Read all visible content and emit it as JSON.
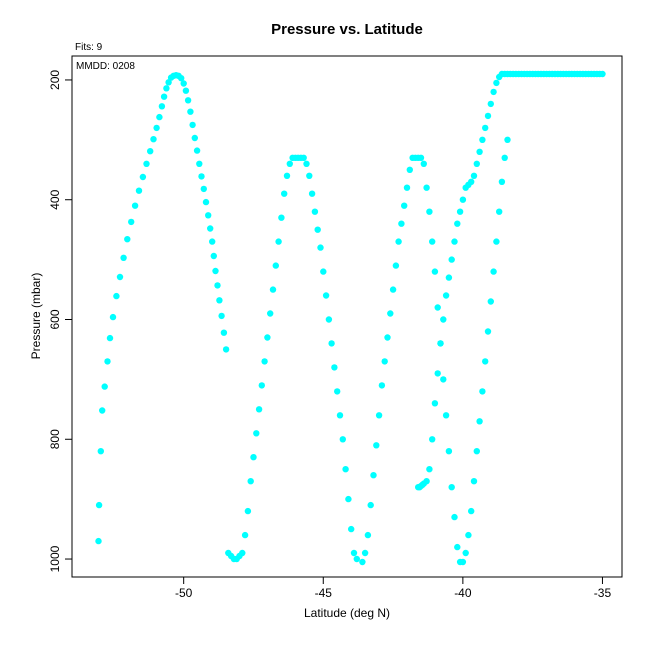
{
  "chart_data": {
    "type": "scatter",
    "title": "Pressure vs. Latitude",
    "xlabel": "Latitude (deg N)",
    "ylabel": "Pressure (mbar)",
    "xlim": [
      -54,
      -34.3
    ],
    "ylim": [
      1030,
      160
    ],
    "y_reversed": true,
    "xticks": [
      -50,
      -45,
      -40,
      -35
    ],
    "yticks": [
      200,
      400,
      600,
      800,
      1000
    ],
    "annotations": [
      "Fits: 9",
      "MMDD: 0208"
    ],
    "grid": false,
    "marker_color": "#00ffff",
    "series": [
      {
        "x": [
          -53.05,
          -53.03,
          -52.97,
          -52.92,
          -52.83,
          -52.73,
          -52.64,
          -52.53,
          -52.41,
          -52.28,
          -52.15,
          -52.02,
          -51.88,
          -51.74,
          -51.6,
          -51.46,
          -51.33,
          -51.2,
          -51.08,
          -50.97,
          -50.87,
          -50.78,
          -50.7,
          -50.62,
          -50.54,
          -50.45,
          -50.36,
          -50.27,
          -50.18,
          -50.09,
          -50.0,
          -49.92,
          -49.84,
          -49.76,
          -49.68,
          -49.6,
          -49.52,
          -49.44,
          -49.36,
          -49.28,
          -49.2,
          -49.12,
          -49.05,
          -48.98,
          -48.92,
          -48.86,
          -48.79,
          -48.72,
          -48.64,
          -48.56,
          -48.48
        ],
        "y": [
          970,
          910,
          820,
          752,
          712,
          670,
          631,
          596,
          561,
          529,
          497,
          466,
          437,
          410,
          385,
          362,
          340,
          319,
          299,
          280,
          262,
          244,
          228,
          214,
          204,
          196,
          193,
          192,
          193,
          197,
          206,
          218,
          234,
          253,
          275,
          297,
          318,
          340,
          361,
          382,
          404,
          426,
          448,
          470,
          494,
          519,
          543,
          568,
          594,
          622,
          650
        ]
      },
      {
        "x": [
          -48.4,
          -48.3,
          -48.2,
          -48.1,
          -48.0,
          -47.9,
          -47.8,
          -47.7,
          -47.6,
          -47.5,
          -47.4,
          -47.3,
          -47.2,
          -47.1,
          -47.0,
          -46.9,
          -46.8,
          -46.7,
          -46.6,
          -46.5,
          -46.4,
          -46.3,
          -46.2,
          -46.1,
          -46.0,
          -45.9,
          -45.8,
          -45.7,
          -45.6,
          -45.5,
          -45.4,
          -45.3,
          -45.2,
          -45.1,
          -45.0,
          -44.9,
          -44.8,
          -44.7,
          -44.6,
          -44.5,
          -44.4,
          -44.3,
          -44.2,
          -44.1,
          -44.0,
          -43.9,
          -43.8
        ],
        "y": [
          990,
          995,
          1000,
          1000,
          995,
          990,
          960,
          920,
          870,
          830,
          790,
          750,
          710,
          670,
          630,
          590,
          550,
          510,
          470,
          430,
          390,
          360,
          340,
          330,
          330,
          330,
          330,
          330,
          340,
          360,
          390,
          420,
          450,
          480,
          520,
          560,
          600,
          640,
          680,
          720,
          760,
          800,
          850,
          900,
          950,
          990,
          1000
        ]
      },
      {
        "x": [
          -43.6,
          -43.5,
          -43.4,
          -43.3,
          -43.2,
          -43.1,
          -43.0,
          -42.9,
          -42.8,
          -42.7,
          -42.6,
          -42.5,
          -42.4,
          -42.3,
          -42.2,
          -42.1,
          -42.0,
          -41.9,
          -41.8,
          -41.7,
          -41.6,
          -41.5,
          -41.4,
          -41.3,
          -41.2,
          -41.1,
          -41.0,
          -40.9,
          -40.8,
          -40.7,
          -40.6,
          -40.5,
          -40.4,
          -40.3,
          -40.2,
          -40.1,
          -40.0,
          -39.9,
          -39.8,
          -39.7,
          -39.6,
          -39.5,
          -39.4,
          -39.3,
          -39.2,
          -39.1,
          -39.0,
          -38.9,
          -38.8,
          -38.7,
          -38.6,
          -38.5,
          -38.4
        ],
        "y": [
          1005,
          990,
          960,
          910,
          860,
          810,
          760,
          710,
          670,
          630,
          590,
          550,
          510,
          470,
          440,
          410,
          380,
          350,
          330,
          330,
          330,
          330,
          340,
          380,
          420,
          470,
          520,
          580,
          640,
          700,
          760,
          820,
          880,
          930,
          980,
          1005,
          1005,
          990,
          960,
          920,
          870,
          820,
          770,
          720,
          670,
          620,
          570,
          520,
          470,
          420,
          370,
          330,
          300
        ]
      },
      {
        "x": [
          -41.6,
          -41.55,
          -41.5,
          -41.45,
          -41.4,
          -41.3,
          -41.2,
          -41.1,
          -41.0,
          -40.9,
          -40.8,
          -40.7,
          -40.6,
          -40.5,
          -40.4,
          -40.3,
          -40.2,
          -40.1,
          -40.0,
          -39.9,
          -39.8,
          -39.7,
          -39.6,
          -39.5,
          -39.4,
          -39.3,
          -39.2,
          -39.1,
          -39.0,
          -38.9,
          -38.8,
          -38.7,
          -38.6,
          -38.5,
          -38.4,
          -38.3,
          -38.2,
          -38.1,
          -38.0,
          -37.9,
          -37.8,
          -37.7,
          -37.6,
          -37.5,
          -37.4,
          -37.3,
          -37.2,
          -37.1,
          -37.0,
          -36.9,
          -36.8,
          -36.7,
          -36.6,
          -36.5,
          -36.4,
          -36.3,
          -36.2,
          -36.1,
          -36.0,
          -35.9,
          -35.8,
          -35.7,
          -35.6,
          -35.5,
          -35.4,
          -35.3,
          -35.2,
          -35.1,
          -35.0
        ],
        "y": [
          880,
          880,
          878,
          876,
          874,
          870,
          850,
          800,
          740,
          690,
          640,
          600,
          560,
          530,
          500,
          470,
          440,
          420,
          400,
          380,
          375,
          370,
          360,
          340,
          320,
          300,
          280,
          260,
          240,
          220,
          205,
          195,
          190,
          190,
          190,
          190,
          190,
          190,
          190,
          190,
          190,
          190,
          190,
          190,
          190,
          190,
          190,
          190,
          190,
          190,
          190,
          190,
          190,
          190,
          190,
          190,
          190,
          190,
          190,
          190,
          190,
          190,
          190,
          190,
          190,
          190,
          190,
          190,
          190
        ]
      }
    ]
  }
}
